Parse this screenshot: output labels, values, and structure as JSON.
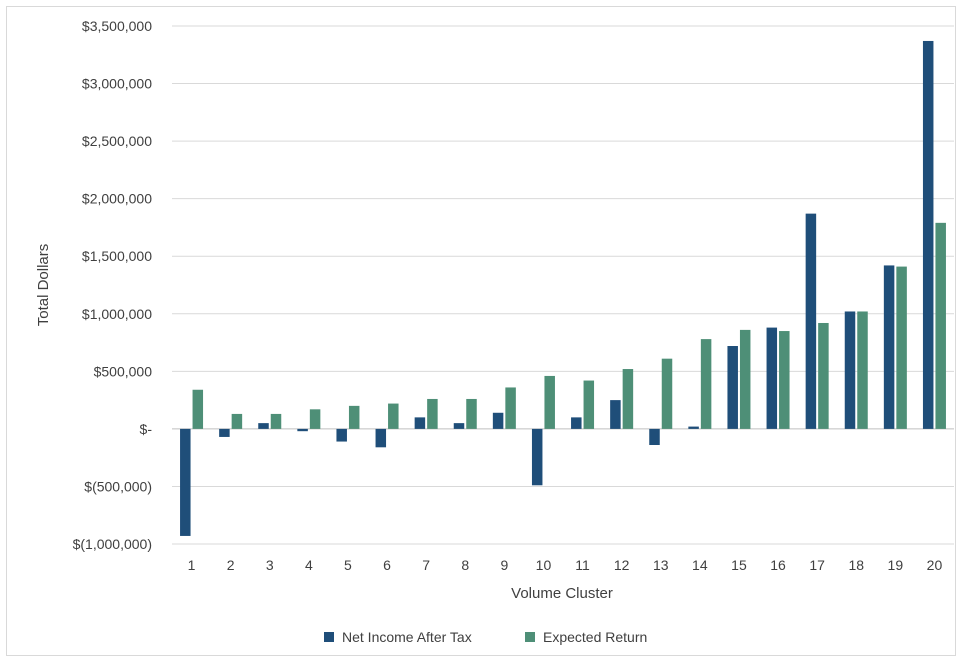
{
  "chart_data": {
    "type": "bar",
    "title": "",
    "xlabel": "Volume Cluster",
    "ylabel": "Total Dollars",
    "ylim": [
      -1000000,
      3500000
    ],
    "y_ticks": [
      3500000,
      3000000,
      2500000,
      2000000,
      1500000,
      1000000,
      500000,
      0,
      -500000,
      -1000000
    ],
    "y_tick_labels": [
      "$3,500,000",
      "$3,000,000",
      "$2,500,000",
      "$2,000,000",
      "$1,500,000",
      "$1,000,000",
      "$500,000",
      "$-",
      "$(500,000)",
      "$(1,000,000)"
    ],
    "categories": [
      "1",
      "2",
      "3",
      "4",
      "5",
      "6",
      "7",
      "8",
      "9",
      "10",
      "11",
      "12",
      "13",
      "14",
      "15",
      "16",
      "17",
      "18",
      "19",
      "20"
    ],
    "grid": true,
    "legend_position": "bottom",
    "series": [
      {
        "name": "Net Income After Tax",
        "color": "#1f4e79",
        "values": [
          -930000,
          -70000,
          50000,
          -20000,
          -110000,
          -160000,
          100000,
          50000,
          140000,
          -490000,
          100000,
          250000,
          -140000,
          20000,
          720000,
          880000,
          1870000,
          1020000,
          1420000,
          3370000
        ]
      },
      {
        "name": "Expected Return",
        "color": "#4e8f77",
        "values": [
          340000,
          130000,
          130000,
          170000,
          200000,
          220000,
          260000,
          260000,
          360000,
          460000,
          420000,
          520000,
          610000,
          780000,
          860000,
          850000,
          920000,
          1020000,
          1410000,
          1790000
        ]
      }
    ]
  }
}
